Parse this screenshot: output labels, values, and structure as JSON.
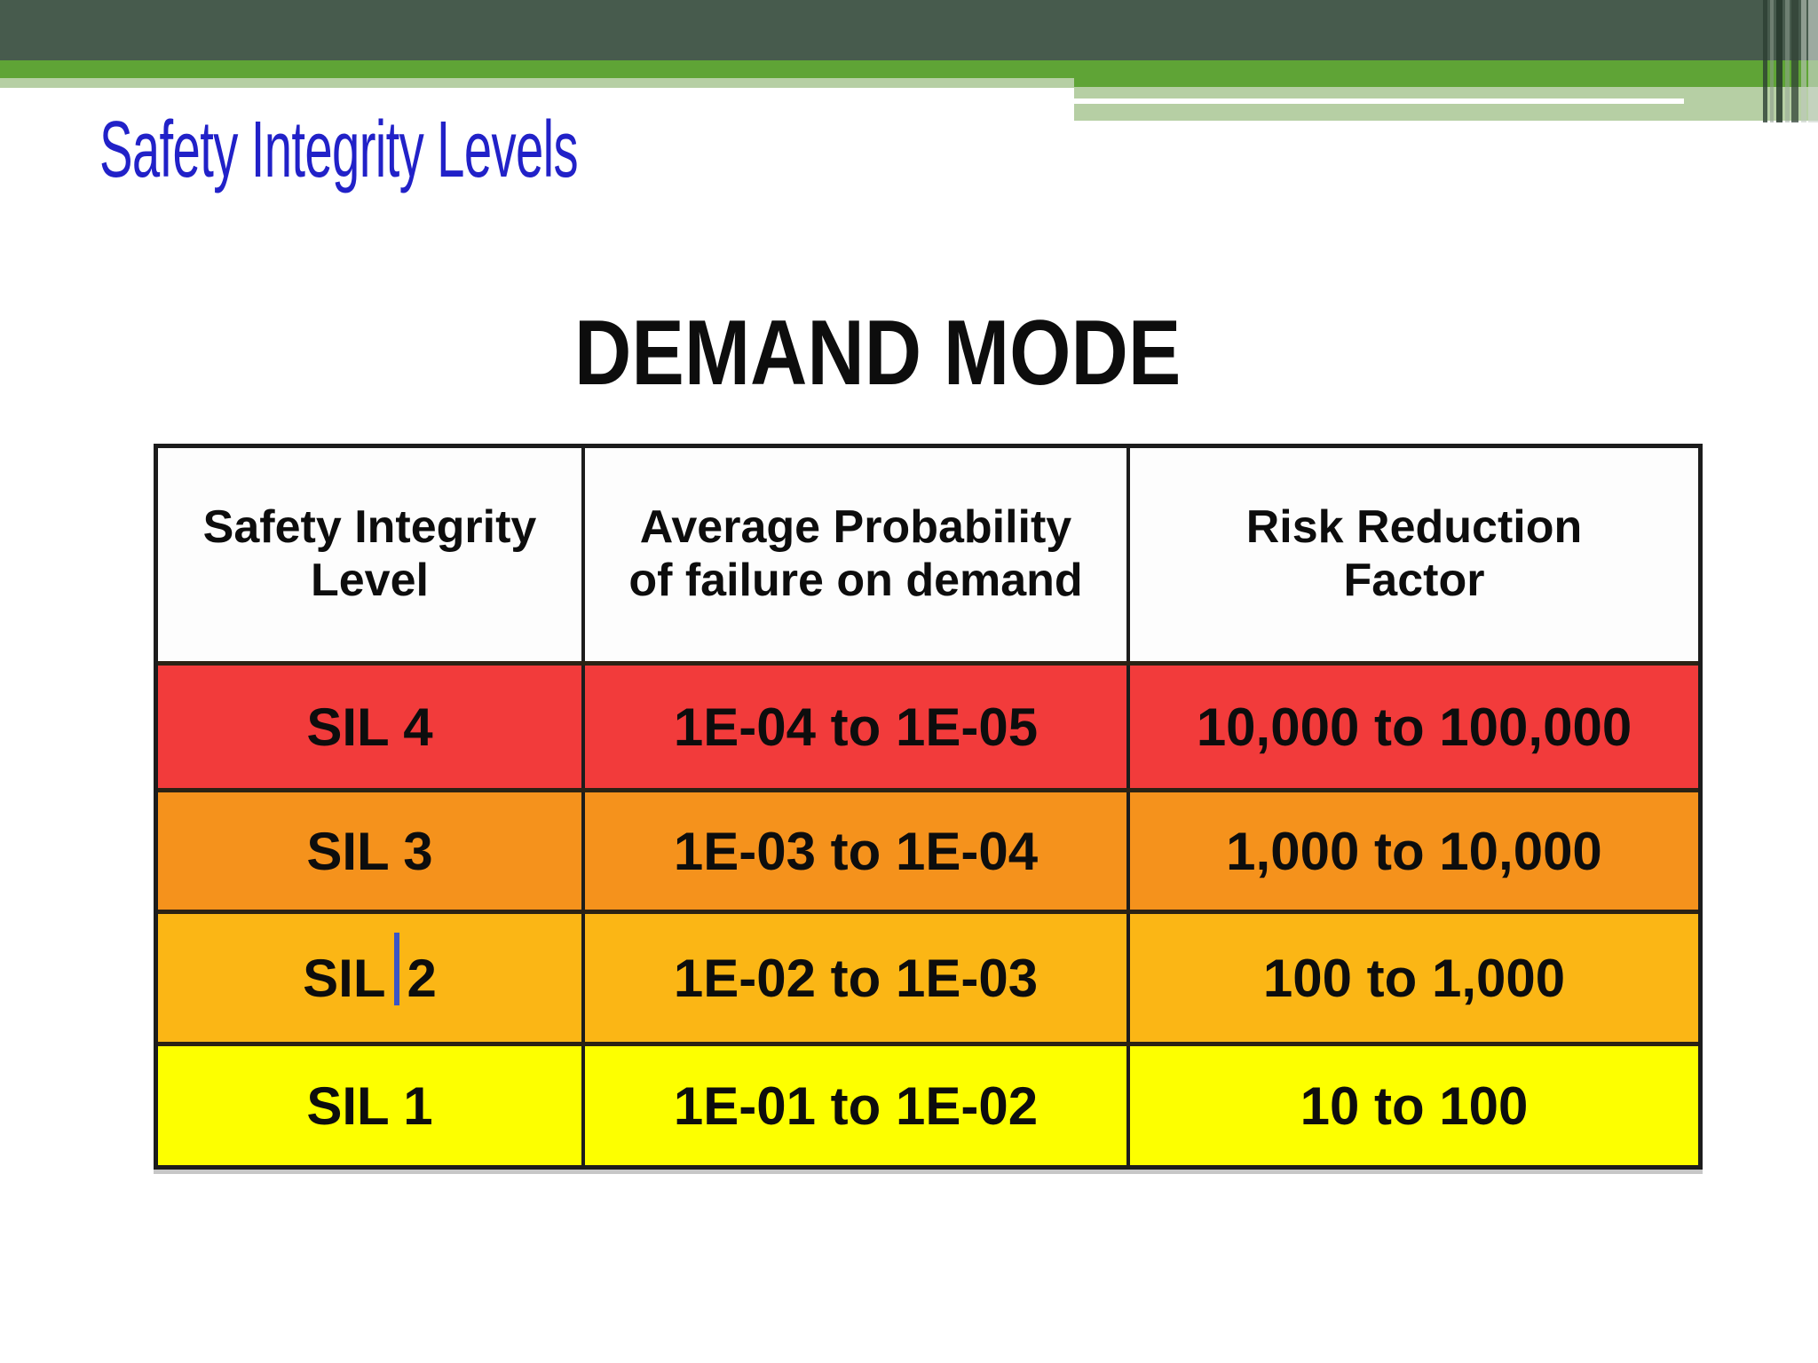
{
  "slide": {
    "heading": "Safety Integrity Levels",
    "table_title": "DEMAND MODE"
  },
  "colors": {
    "banner_dark_green": "#475b4d",
    "banner_green": "#5fa436",
    "banner_light_green": "#b6cfa4",
    "heading_blue": "#2121c8",
    "title_black": "#0d0d0d",
    "sil4_red": "#f23b3b",
    "sil3_orange": "#f5921c",
    "sil2_amber": "#fbb615",
    "sil1_yellow": "#fdff00",
    "table_border": "#1c1c1c",
    "row_divider": "#2b2214",
    "text_cursor_blue": "#3b55c6"
  },
  "table": {
    "headers": [
      {
        "lines": [
          "Safety Integrity",
          "Level"
        ]
      },
      {
        "lines": [
          "Average Probability",
          "of failure on demand"
        ]
      },
      {
        "lines": [
          "Risk Reduction",
          "Factor"
        ]
      }
    ],
    "rows": [
      {
        "level": "SIL 4",
        "pfd": "1E-04 to 1E-05",
        "rrf": "10,000 to 100,000"
      },
      {
        "level": "SIL 3",
        "pfd": "1E-03 to 1E-04",
        "rrf": "1,000 to 10,000"
      },
      {
        "level_pre": "SIL",
        "level_post": "2",
        "has_text_cursor": true,
        "pfd": "1E-02 to 1E-03",
        "rrf": "100 to 1,000"
      },
      {
        "level": "SIL 1",
        "pfd": "1E-01 to 1E-02",
        "rrf": "10 to 100"
      }
    ]
  }
}
